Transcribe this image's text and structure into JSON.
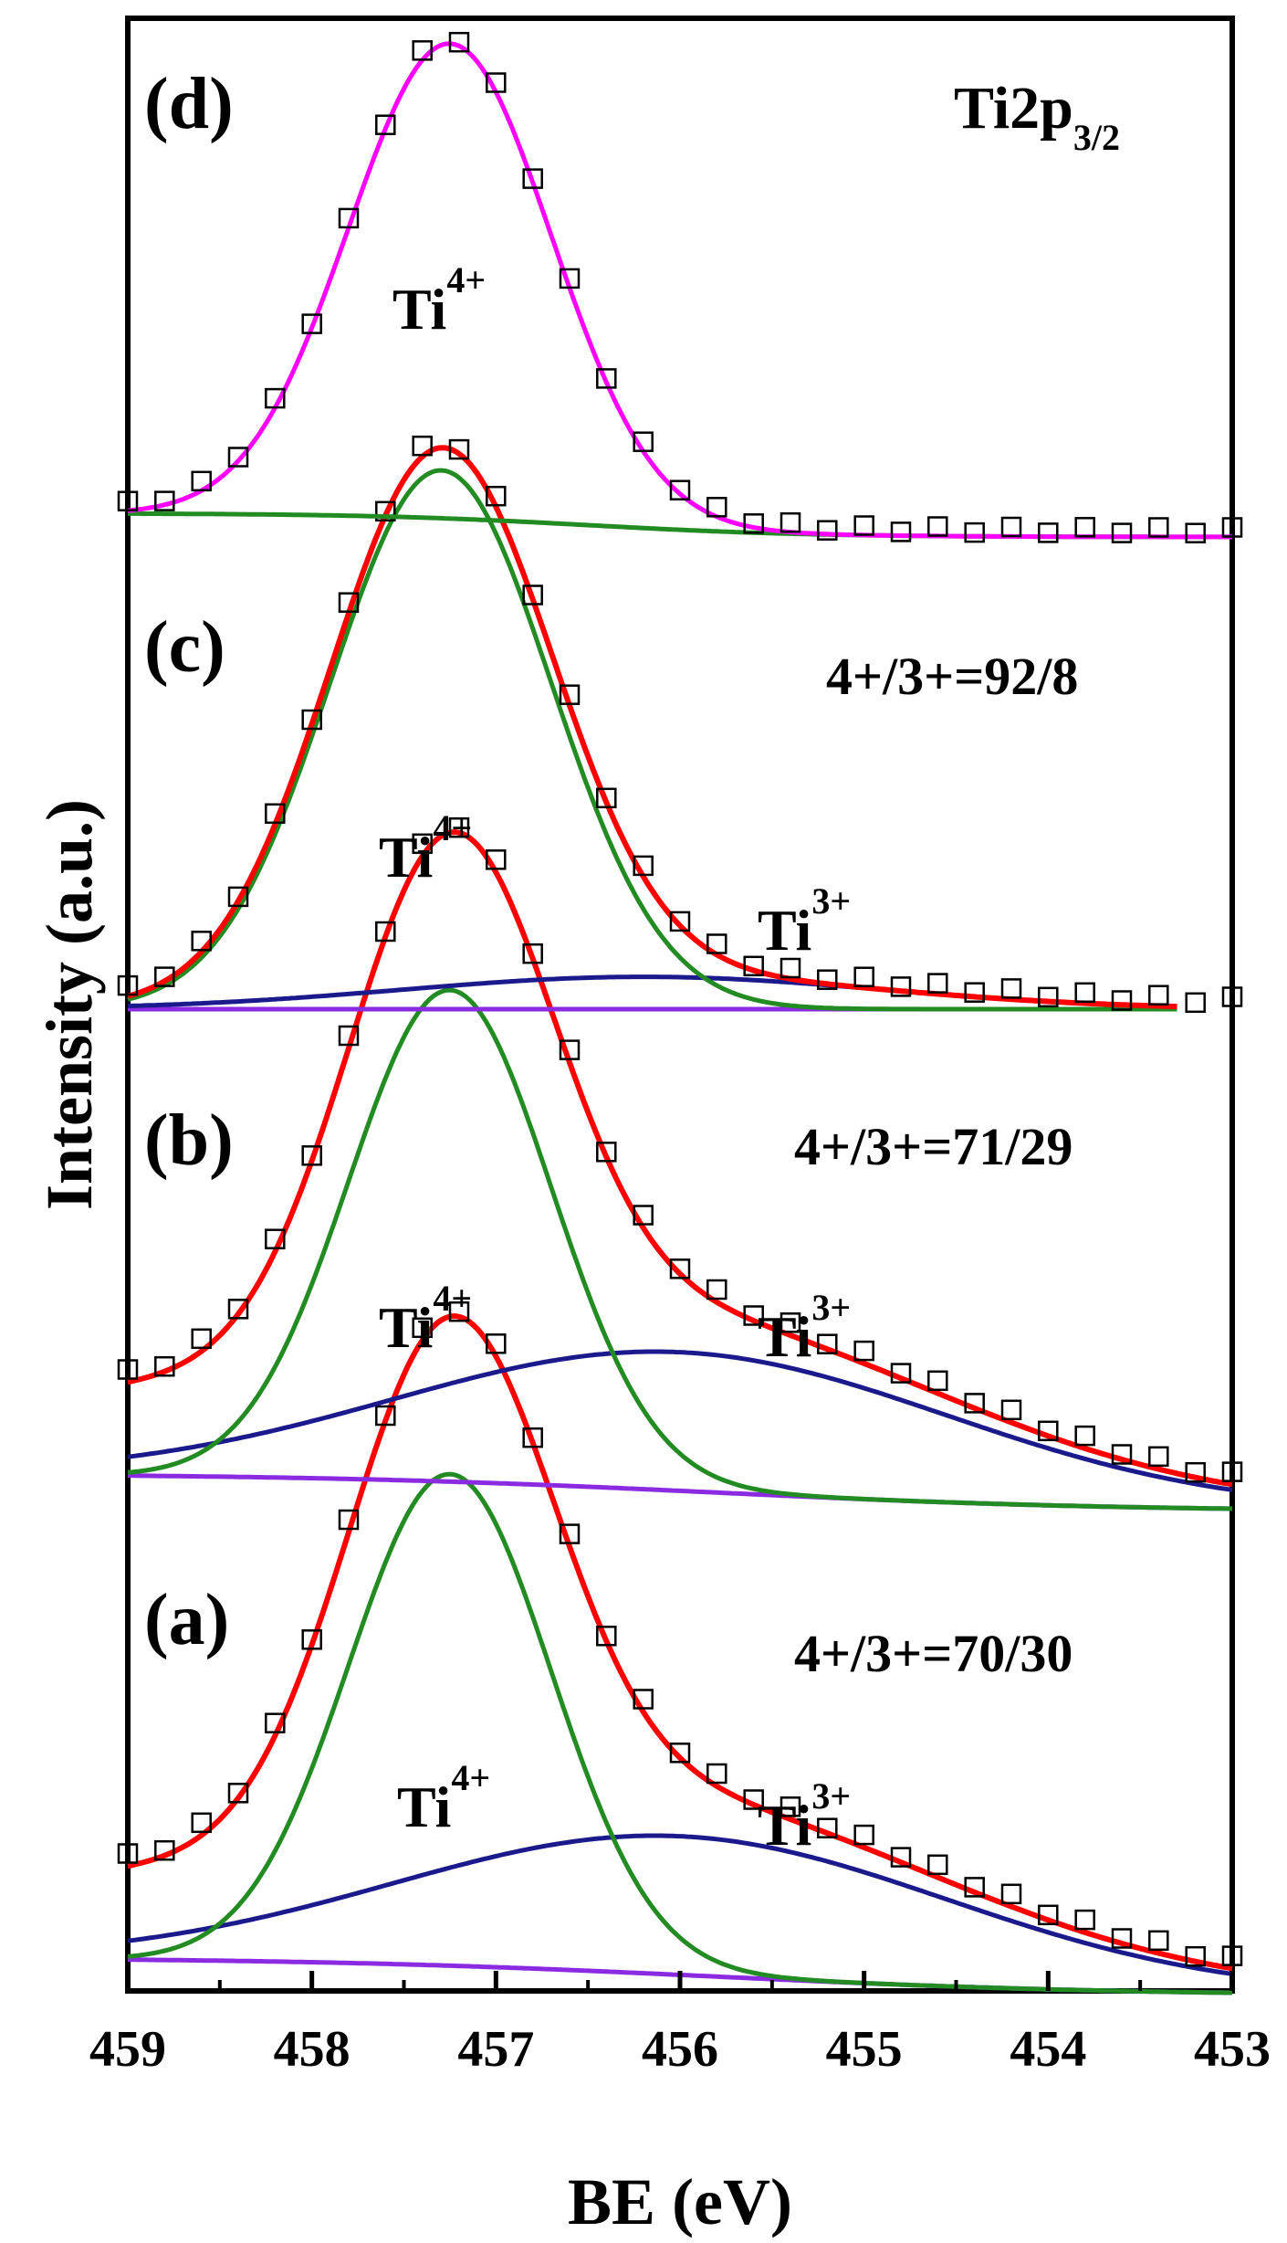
{
  "colors": {
    "axes": "#000000",
    "experimental": "#000000",
    "envelope": "#ff0000",
    "ti4": "#228b22",
    "ti3": "#1a1a8c",
    "background": "#8a2be2",
    "ti4_only_fit": "#ff00ff",
    "background_d": "#228b22"
  },
  "chart_data": {
    "type": "line",
    "title": "Ti2p",
    "title_subscript": "3/2",
    "xlabel": "BE (eV)",
    "ylabel": "Intensity (a.u.)",
    "xlim": [
      459,
      453
    ],
    "x_reversed": true,
    "x_ticks": [
      "459",
      "458",
      "457",
      "456",
      "455",
      "454",
      "453"
    ],
    "species_label": "Ti",
    "ti4_sup": "4+",
    "ti3_sup": "3+",
    "panels": [
      {
        "label": "(a)",
        "ratio": "4+/3+=70/30",
        "series": [
          {
            "name": "background",
            "type": "sigmoid",
            "high": 0.06,
            "low": 0.0,
            "center": 455.8,
            "width": 1.1
          },
          {
            "name": "Ti4+",
            "center": 457.25,
            "height": 0.78,
            "sigma": 0.55
          },
          {
            "name": "Ti3+",
            "center": 456.0,
            "height": 0.22,
            "sigma": 1.5
          },
          {
            "name": "envelope",
            "sum": [
              "background",
              "Ti4+",
              "Ti3+"
            ]
          }
        ],
        "experimental_offset": 0.02
      },
      {
        "label": "(b)",
        "ratio": "4+/3+=71/29",
        "series": [
          {
            "name": "background",
            "type": "sigmoid",
            "high": 0.06,
            "low": 0.0,
            "center": 455.8,
            "width": 1.1
          },
          {
            "name": "Ti4+",
            "center": 457.25,
            "height": 0.78,
            "sigma": 0.55
          },
          {
            "name": "Ti3+",
            "center": 456.0,
            "height": 0.22,
            "sigma": 1.5
          },
          {
            "name": "envelope",
            "sum": [
              "background",
              "Ti4+",
              "Ti3+"
            ]
          }
        ],
        "experimental_offset": 0.02
      },
      {
        "label": "(c)",
        "ratio": "4+/3+=92/8",
        "x_end": 453.3,
        "series": [
          {
            "name": "background",
            "type": "sigmoid",
            "high": 0.0,
            "low": 0.0,
            "center": 456,
            "width": 1.0
          },
          {
            "name": "Ti4+",
            "center": 457.3,
            "height": 1.0,
            "sigma": 0.6
          },
          {
            "name": "Ti3+",
            "center": 456.2,
            "height": 0.06,
            "sigma": 1.3
          },
          {
            "name": "envelope",
            "sum": [
              "background",
              "Ti4+",
              "Ti3+"
            ]
          }
        ],
        "experimental_offset": 0.02
      },
      {
        "label": "(d)",
        "ratio": "",
        "series": [
          {
            "name": "background",
            "type": "sigmoid",
            "high": 0.0,
            "low": -0.05,
            "center": 456.5,
            "width": 0.6
          },
          {
            "name": "Ti4+",
            "center": 457.25,
            "height": 1.0,
            "sigma": 0.55
          }
        ],
        "experimental_offset": 0.02
      }
    ]
  }
}
